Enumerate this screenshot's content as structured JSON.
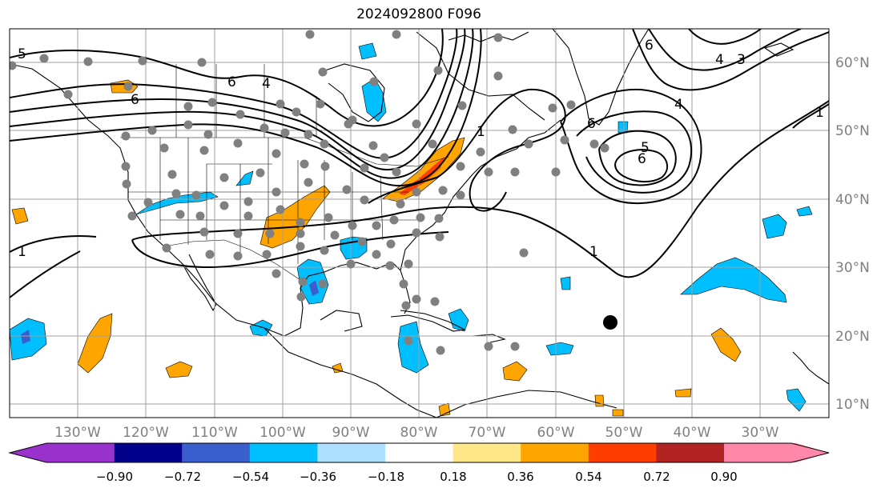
{
  "title": "2024092800 F096",
  "lat_labels": [
    "10°N",
    "20°N",
    "30°N",
    "40°N",
    "50°N",
    "60°N"
  ],
  "lon_labels": [
    "130°W",
    "120°W",
    "110°W",
    "100°W",
    "90°W",
    "80°W",
    "70°W",
    "60°W",
    "50°W",
    "40°W",
    "30°W"
  ],
  "colorbar": {
    "ticks": [
      "−0.90",
      "−0.72",
      "−0.54",
      "−0.36",
      "−0.18",
      "0.18",
      "0.36",
      "0.54",
      "0.72",
      "0.90"
    ],
    "colors": [
      "#9932cc",
      "#00008b",
      "#3a5fcd",
      "#00bfff",
      "#b0e0ff",
      "#ffffff",
      "#ffe88a",
      "#ffa500",
      "#ff3d00",
      "#b22222",
      "#ff88aa"
    ]
  },
  "contour_labels": [
    "5",
    "6",
    "6",
    "4",
    "6",
    "4",
    "6",
    "3",
    "4",
    "5",
    "6",
    "1",
    "1",
    "1",
    "1"
  ],
  "storm_marker": "tropical-cyclone-center"
}
